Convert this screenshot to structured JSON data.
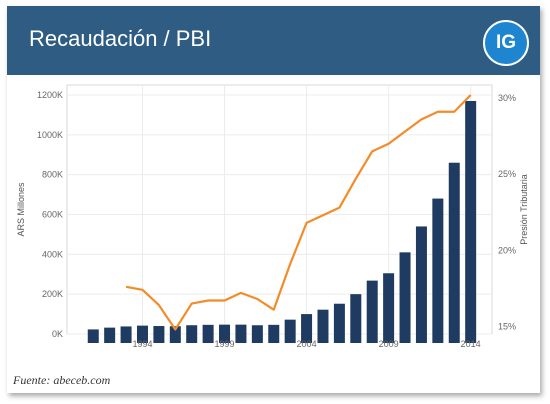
{
  "header": {
    "title": "Recaudación / PBI",
    "logo_text": "IG"
  },
  "source": "Fuente: abeceb.com",
  "colors": {
    "header_bg": "#2e5c82",
    "bars": "#1f3b61",
    "line": "#f28c28",
    "logo": "#1e86d0"
  },
  "chart_data": {
    "type": "bar+line",
    "x_ticks": [
      "1994",
      "1999",
      "2004",
      "2009",
      "2014"
    ],
    "ylabel_left": "ARS Millones",
    "ylabel_right": "Presión Tributaria",
    "y_left_ticks": [
      "0K",
      "200K",
      "400K",
      "600K",
      "800K",
      "1000K",
      "1200K"
    ],
    "y_left_lim": [
      0,
      1200000
    ],
    "y_right_ticks": [
      "15%",
      "20%",
      "25%",
      "30%"
    ],
    "y_right_lim": [
      14.5,
      30.2
    ],
    "grid": true,
    "series": [
      {
        "kind": "bar",
        "axis": "left",
        "x": [
          1991,
          1992,
          1993,
          1994,
          1995,
          1996,
          1997,
          1998,
          1999,
          2000,
          2001,
          2002,
          2003,
          2004,
          2005,
          2006,
          2007,
          2008,
          2009,
          2010,
          2011,
          2012,
          2013,
          2014
        ],
        "values": [
          23000,
          32000,
          38000,
          42000,
          40000,
          39000,
          44000,
          46000,
          47000,
          47000,
          44000,
          46000,
          72000,
          100000,
          122000,
          152000,
          200000,
          268000,
          305000,
          410000,
          540000,
          680000,
          860000,
          1170000
        ]
      },
      {
        "kind": "line",
        "axis": "right",
        "x": [
          1993,
          1994,
          1995,
          1996,
          1997,
          1998,
          1999,
          2000,
          2001,
          2002,
          2003,
          2004,
          2005,
          2006,
          2007,
          2008,
          2009,
          2010,
          2011,
          2012,
          2013,
          2014
        ],
        "values": [
          17.6,
          17.4,
          16.4,
          14.8,
          16.5,
          16.7,
          16.7,
          17.2,
          16.8,
          16.1,
          19.1,
          21.8,
          22.3,
          22.8,
          24.7,
          26.5,
          27.0,
          27.8,
          28.6,
          29.1,
          29.1,
          30.2
        ]
      }
    ]
  }
}
